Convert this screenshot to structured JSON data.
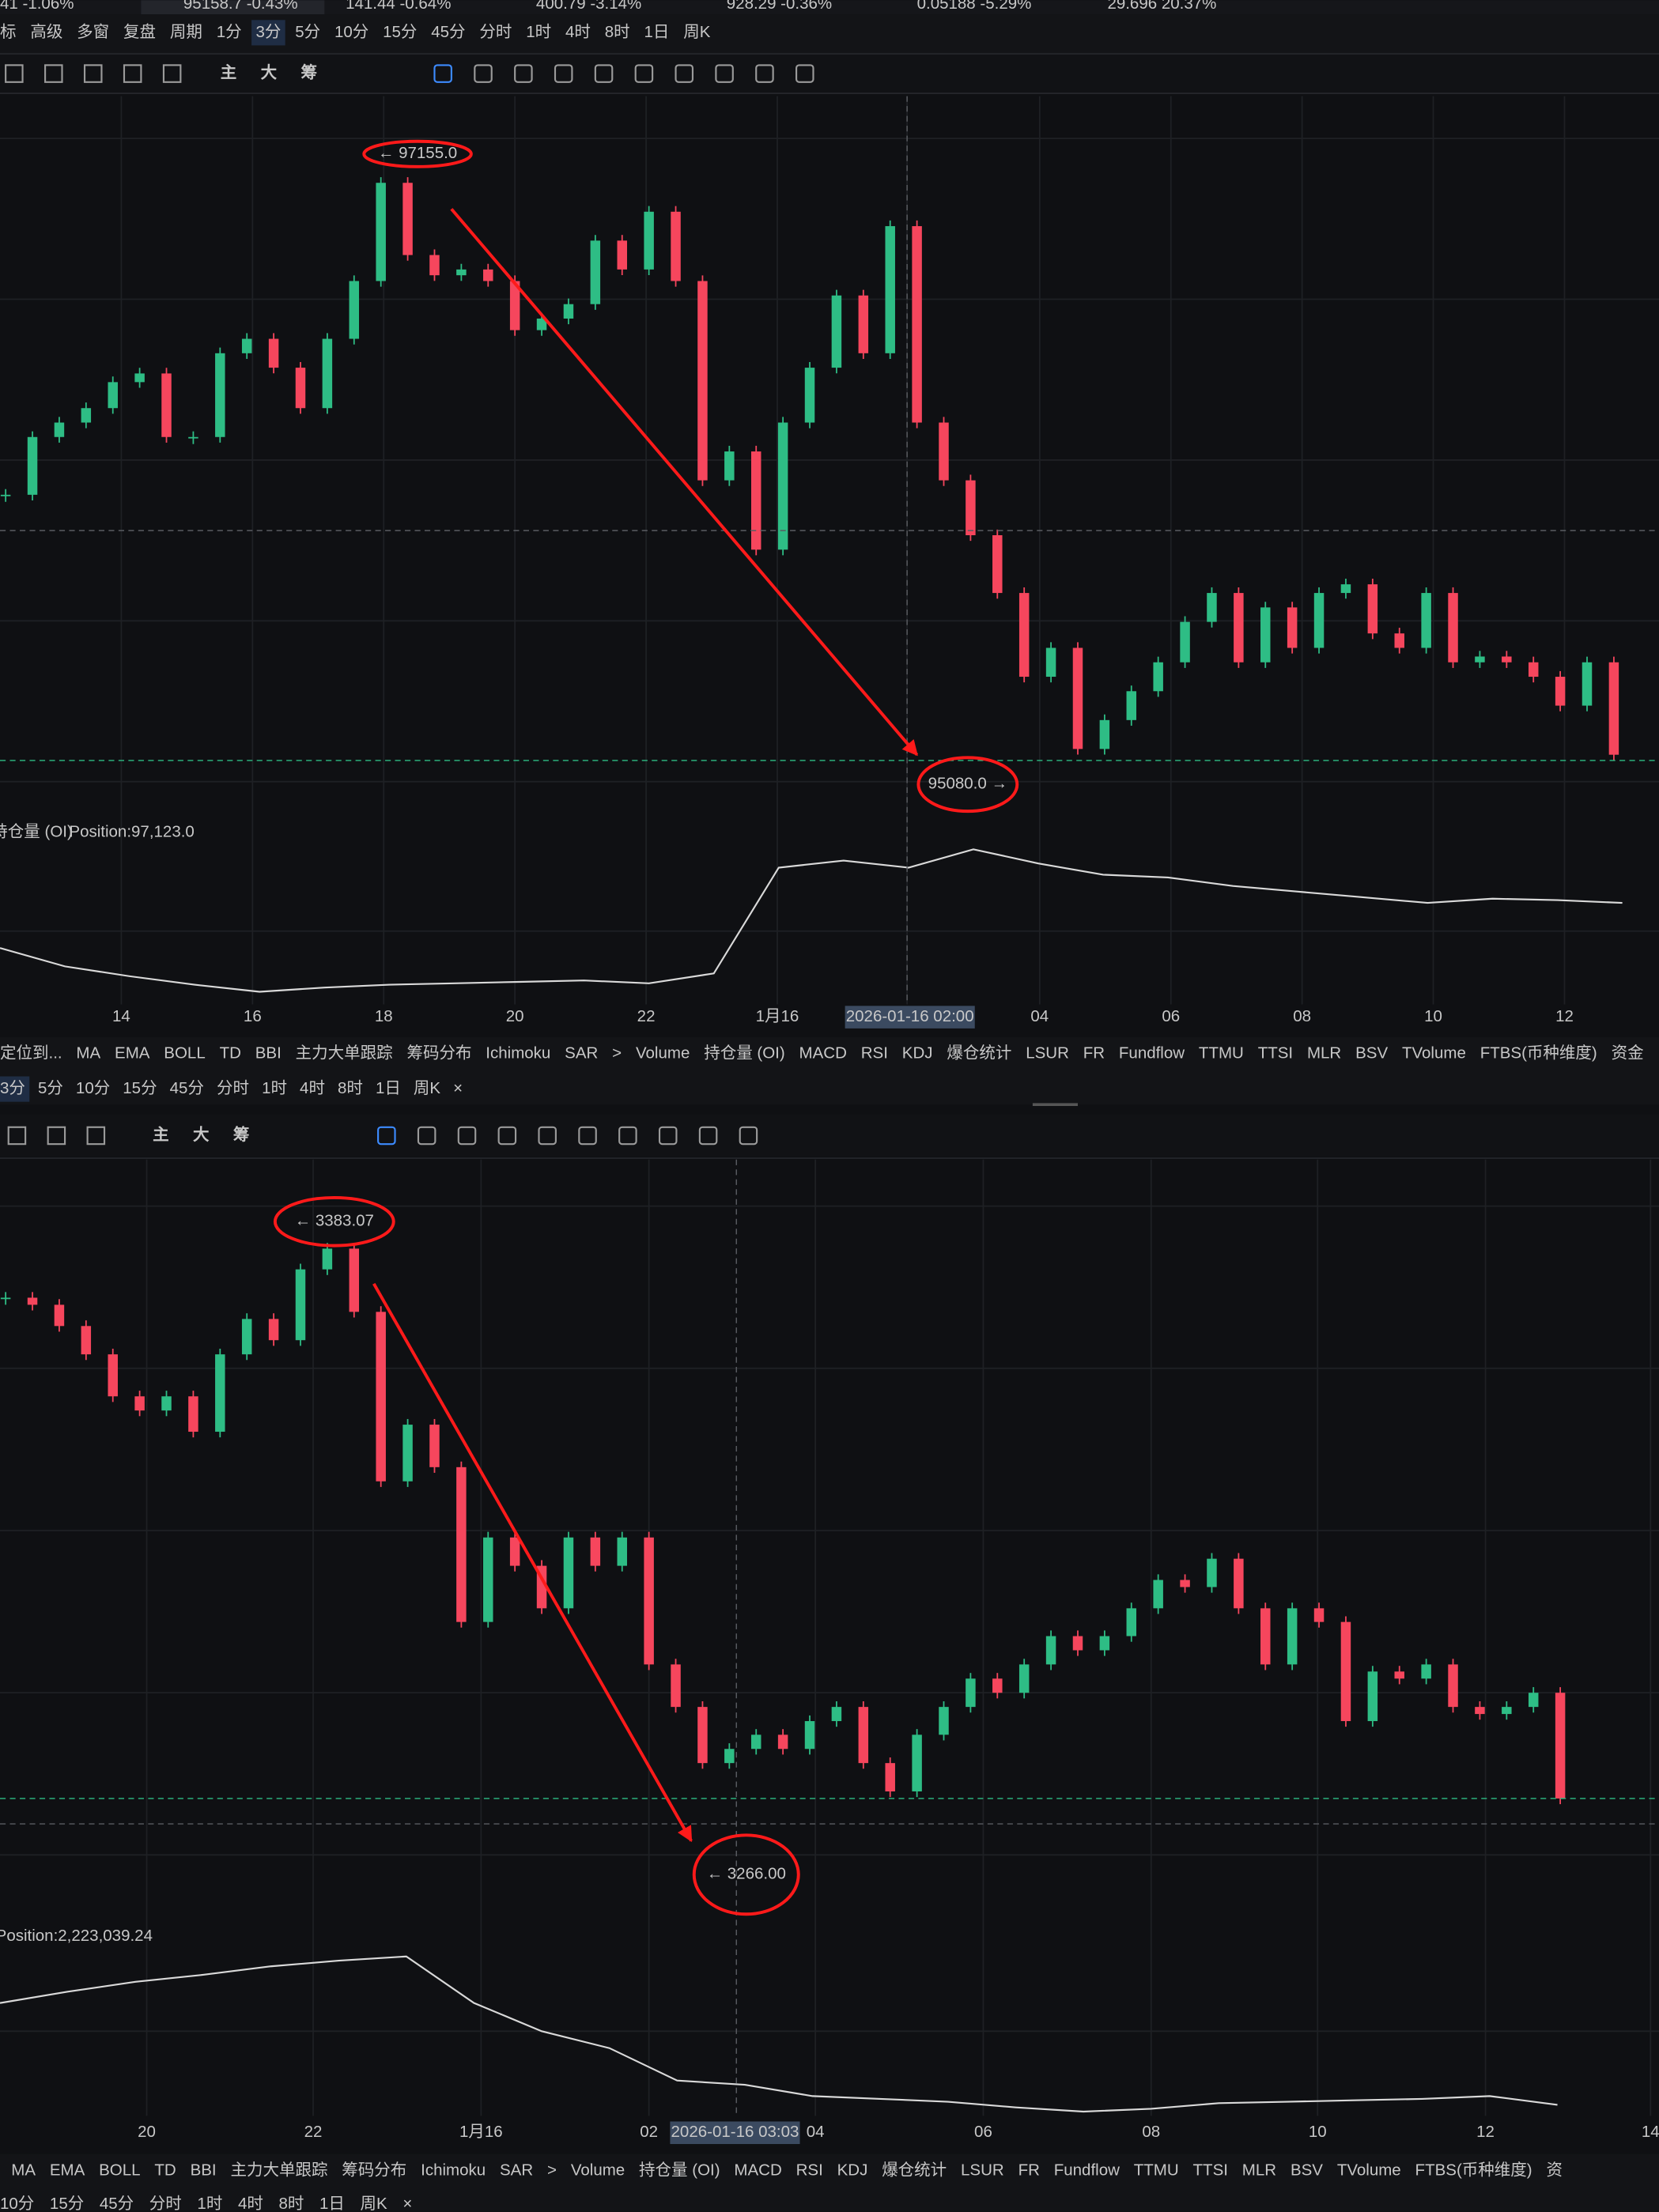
{
  "ticker_strip": [
    {
      "text": "41 -1.06%",
      "color": "#e6e6e6"
    },
    {
      "text": "95158.7 -0.43%",
      "color": "#f6465d"
    },
    {
      "text": "141.44 -0.64%",
      "color": "#2ebd85"
    },
    {
      "text": "400.79 -3.14%",
      "color": "#f6465d"
    },
    {
      "text": "928.29 -0.36%",
      "color": "#2ebd85"
    },
    {
      "text": "0.05188 -5.29%",
      "color": "#2ebd85"
    },
    {
      "text": "29.696 20.37%",
      "color": "#2ebd85"
    }
  ],
  "toolbar_top": [
    {
      "text": "标"
    },
    {
      "text": "高级"
    },
    {
      "text": "多窗"
    },
    {
      "text": "复盘"
    },
    {
      "text": "周期"
    },
    {
      "text": "1分"
    },
    {
      "text": "3分",
      "active": true
    },
    {
      "text": "5分"
    },
    {
      "text": "10分"
    },
    {
      "text": "15分"
    },
    {
      "text": "45分"
    },
    {
      "text": "分时"
    },
    {
      "text": "1时"
    },
    {
      "text": "4时"
    },
    {
      "text": "8时"
    },
    {
      "text": "1日"
    },
    {
      "text": "周K"
    }
  ],
  "drawing_tools_1": {
    "labels": [
      "主",
      "大",
      "筹"
    ]
  },
  "indicator_bar_1": [
    {
      "text": "定位到..."
    },
    {
      "text": "MA"
    },
    {
      "text": "EMA"
    },
    {
      "text": "BOLL"
    },
    {
      "text": "TD"
    },
    {
      "text": "BBI"
    },
    {
      "text": "主力大单跟踪"
    },
    {
      "text": "筹码分布"
    },
    {
      "text": "Ichimoku"
    },
    {
      "text": "SAR"
    },
    {
      "text": ">"
    },
    {
      "text": "Volume"
    },
    {
      "text": "持仓量 (OI)",
      "active": true
    },
    {
      "text": "MACD"
    },
    {
      "text": "RSI"
    },
    {
      "text": "KDJ"
    },
    {
      "text": "爆仓统计"
    },
    {
      "text": "LSUR"
    },
    {
      "text": "FR"
    },
    {
      "text": "Fundflow"
    },
    {
      "text": "TTMU"
    },
    {
      "text": "TTSI"
    },
    {
      "text": "MLR"
    },
    {
      "text": "BSV"
    },
    {
      "text": "TVolume"
    },
    {
      "text": "FTBS(币种维度)"
    },
    {
      "text": "资金"
    }
  ],
  "period_bar_1": [
    {
      "text": "3分",
      "active": true
    },
    {
      "text": "5分"
    },
    {
      "text": "10分"
    },
    {
      "text": "15分"
    },
    {
      "text": "45分"
    },
    {
      "text": "分时"
    },
    {
      "text": "1时"
    },
    {
      "text": "4时"
    },
    {
      "text": "8时"
    },
    {
      "text": "1日"
    },
    {
      "text": "周K"
    },
    {
      "text": "×"
    }
  ],
  "drawing_tools_2": {
    "labels": [
      "主",
      "大",
      "筹"
    ]
  },
  "indicator_bar_2": [
    {
      "text": "MA"
    },
    {
      "text": "EMA"
    },
    {
      "text": "BOLL"
    },
    {
      "text": "TD"
    },
    {
      "text": "BBI"
    },
    {
      "text": "主力大单跟踪"
    },
    {
      "text": "筹码分布"
    },
    {
      "text": "Ichimoku"
    },
    {
      "text": "SAR"
    },
    {
      "text": ">"
    },
    {
      "text": "Volume"
    },
    {
      "text": "持仓量 (OI)",
      "active": true
    },
    {
      "text": "MACD"
    },
    {
      "text": "RSI"
    },
    {
      "text": "KDJ"
    },
    {
      "text": "爆仓统计"
    },
    {
      "text": "LSUR"
    },
    {
      "text": "FR"
    },
    {
      "text": "Fundflow"
    },
    {
      "text": "TTMU"
    },
    {
      "text": "TTSI"
    },
    {
      "text": "MLR"
    },
    {
      "text": "BSV"
    },
    {
      "text": "TVolume"
    },
    {
      "text": "FTBS(币种维度)"
    },
    {
      "text": "资"
    }
  ],
  "period_bar_2": [
    {
      "text": "10分"
    },
    {
      "text": "15分"
    },
    {
      "text": "45分"
    },
    {
      "text": "分时"
    },
    {
      "text": "1时"
    },
    {
      "text": "4时"
    },
    {
      "text": "8时"
    },
    {
      "text": "1日"
    },
    {
      "text": "周K"
    },
    {
      "text": "×"
    }
  ],
  "chart_data": [
    {
      "type": "candlestick",
      "up_color": "#2ebd85",
      "down_color": "#f6465d",
      "ylim": [
        94900,
        97400
      ],
      "annotations": [
        "← 97155.0",
        "95080.0 →"
      ],
      "values": [
        96020,
        96220,
        96270,
        96320,
        96410,
        96440,
        96220,
        96220,
        96510,
        96560,
        96460,
        96320,
        96560,
        96760,
        97100,
        96850,
        96780,
        96800,
        96760,
        96590,
        96630,
        96680,
        96900,
        96800,
        97000,
        96760,
        96070,
        96170,
        95830,
        96270,
        96460,
        96710,
        96510,
        96950,
        96270,
        96070,
        95880,
        95680,
        95390,
        95490,
        95140,
        95240,
        95340,
        95440,
        95580,
        95680,
        95440,
        95630,
        95490,
        95680,
        95710,
        95540,
        95490,
        95680,
        95440,
        95460,
        95440,
        95390,
        95290,
        95440,
        95120
      ]
    },
    {
      "type": "line",
      "name": "持仓量 (OI)",
      "label": "Position:97,123.0",
      "color": "#d9d9d9",
      "ylim": [
        84500,
        105000
      ],
      "x_labels": [
        "14",
        "16",
        "18",
        "20",
        "22",
        "1月16",
        "04",
        "06",
        "08",
        "10",
        "12"
      ],
      "crosshair_label": "2026-01-16 02:00",
      "values": [
        91510,
        89230,
        88010,
        86950,
        86080,
        86600,
        86950,
        87130,
        87310,
        87480,
        87130,
        88360,
        101500,
        102370,
        101500,
        103770,
        102020,
        100620,
        100270,
        99220,
        98520,
        97820,
        97120,
        97640,
        97470,
        97123
      ]
    },
    {
      "type": "candlestick",
      "up_color": "#2ebd85",
      "down_color": "#f6465d",
      "ylim": [
        3248,
        3398
      ],
      "annotations": [
        "← 3383.07",
        "← 3266.00"
      ],
      "values": [
        3370.7,
        3369.3,
        3365.1,
        3359.5,
        3351.2,
        3348.4,
        3351.2,
        3344.2,
        3359.5,
        3366.5,
        3362.3,
        3376.3,
        3380.4,
        3367.9,
        3334.4,
        3345.6,
        3337.2,
        3306.6,
        3323.3,
        3317.7,
        3309.3,
        3323.3,
        3317.7,
        3323.3,
        3298.2,
        3289.8,
        3278.7,
        3281.5,
        3284.3,
        3281.5,
        3287.0,
        3289.8,
        3278.7,
        3273.1,
        3284.3,
        3289.8,
        3295.4,
        3292.6,
        3298.2,
        3303.8,
        3301.0,
        3303.8,
        3309.3,
        3314.9,
        3313.5,
        3319.1,
        3309.3,
        3298.2,
        3309.3,
        3306.6,
        3287.0,
        3296.8,
        3295.4,
        3298.2,
        3289.8,
        3288.4,
        3289.8,
        3292.6,
        3271.7
      ]
    },
    {
      "type": "line",
      "label": "Position:2,223,039.24",
      "color": "#d9d9d9",
      "ylim": [
        2210000,
        2410000
      ],
      "x_labels": [
        "20",
        "22",
        "1月16",
        "02",
        "04",
        "06",
        "08",
        "10",
        "12",
        "14"
      ],
      "crosshair_label": "2026-01-16 03:03",
      "values": [
        2343330,
        2356670,
        2368330,
        2376670,
        2386670,
        2393330,
        2398330,
        2343330,
        2310000,
        2290000,
        2251670,
        2246670,
        2233330,
        2230000,
        2226670,
        2220000,
        2215000,
        2218330,
        2225000,
        2226670,
        2228330,
        2230000,
        2233330,
        2223039.24
      ]
    }
  ]
}
